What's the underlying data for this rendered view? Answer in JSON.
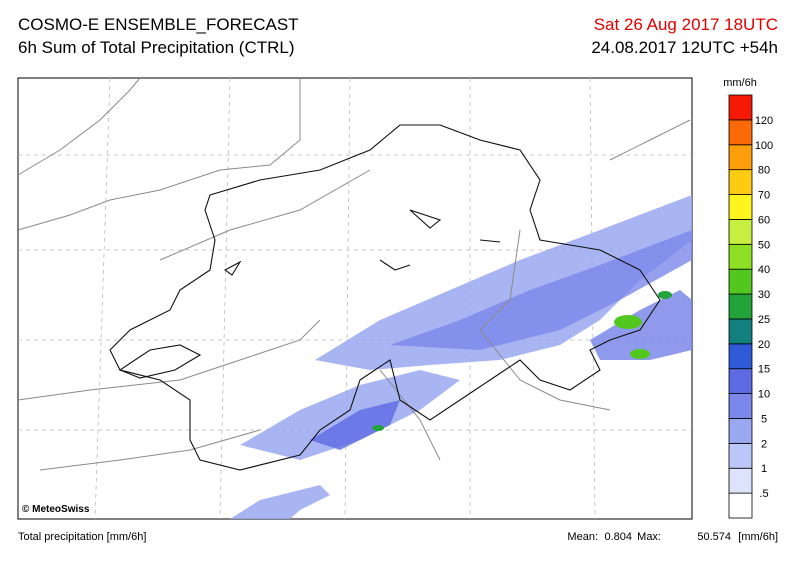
{
  "header": {
    "title": "COSMO-E ENSEMBLE_FORECAST",
    "subtitle": "6h Sum of Total Precipitation (CTRL)",
    "valid_time": "Sat 26 Aug 2017 18UTC",
    "run": "24.08.2017 12UTC +54h"
  },
  "map": {
    "copyright": "© MeteoSwiss"
  },
  "legend": {
    "unit": "mm/6h",
    "labels": [
      ".5",
      "1",
      "2",
      "5",
      "10",
      "15",
      "20",
      "25",
      "30",
      "40",
      "50",
      "60",
      "70",
      "80",
      "100",
      "120"
    ],
    "colors": [
      "#ffffff",
      "#dde3fb",
      "#bcc6f7",
      "#9aa8f1",
      "#7b88ea",
      "#5d6ae2",
      "#2f5ad8",
      "#12807f",
      "#22a43a",
      "#52c81f",
      "#8fe024",
      "#c6ef3f",
      "#fef51e",
      "#fdcb12",
      "#fd9f0a",
      "#fb6a06",
      "#f51a05"
    ]
  },
  "footer": {
    "left": "Total precipitation [mm/6h]",
    "mean_label": "Mean:",
    "mean": "0.804",
    "max_label": "Max:",
    "max": "50.574",
    "unit": "[mm/6h]"
  }
}
